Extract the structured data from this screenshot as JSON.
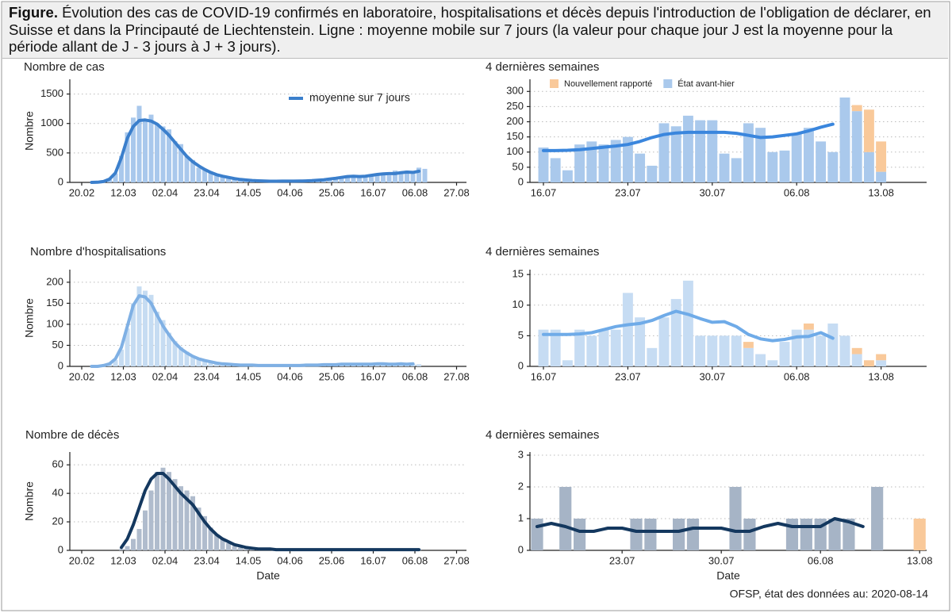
{
  "figure_caption": {
    "label": "Figure.",
    "text": "Évolution des cas de COVID-19 confirmés en laboratoire, hospitalisations et décès depuis l'introduction de l'obligation de déclarer, en Suisse et dans la Principauté de Liechtenstein. Ligne : moyenne mobile sur 7 jours (la valeur pour chaque jour J est la moyenne pour la période allant de J - 3 jours à J + 3 jours)."
  },
  "footer": "OFSP, état des données au: 2020-08-14",
  "chart_data": [
    {
      "type": "bar_line",
      "title": "Nombre de cas",
      "ylabel": "Nombre",
      "grid": true,
      "x": [
        "25.02",
        "28.02",
        "02.03",
        "05.03",
        "08.03",
        "11.03",
        "14.03",
        "17.03",
        "20.03",
        "23.03",
        "26.03",
        "29.03",
        "01.04",
        "04.04",
        "07.04",
        "10.04",
        "13.04",
        "16.04",
        "19.04",
        "22.04",
        "25.04",
        "28.04",
        "01.05",
        "04.05",
        "07.05",
        "10.05",
        "13.05",
        "16.05",
        "19.05",
        "22.05",
        "25.05",
        "28.05",
        "31.05",
        "03.06",
        "06.06",
        "09.06",
        "12.06",
        "15.06",
        "18.06",
        "21.06",
        "24.06",
        "27.06",
        "30.06",
        "03.07",
        "06.07",
        "09.07",
        "12.07",
        "15.07",
        "18.07",
        "21.07",
        "24.07",
        "27.07",
        "30.07",
        "02.08",
        "05.08",
        "08.08",
        "11.08"
      ],
      "xlim": [
        "14.02",
        "01.09"
      ],
      "xticks": [
        "20.02",
        "12.03",
        "02.04",
        "23.04",
        "14.05",
        "04.06",
        "25.06",
        "16.07",
        "06.08",
        "27.08"
      ],
      "ylim": [
        0,
        1750
      ],
      "yticks": [
        0,
        500,
        1000,
        1500
      ],
      "series": [
        {
          "kind": "bar",
          "color": "#a9c8ec",
          "values": [
            0,
            5,
            20,
            60,
            150,
            450,
            850,
            1100,
            1300,
            1050,
            1150,
            1000,
            950,
            900,
            700,
            650,
            450,
            380,
            250,
            220,
            180,
            120,
            100,
            90,
            60,
            50,
            40,
            30,
            25,
            20,
            15,
            20,
            25,
            20,
            25,
            20,
            25,
            30,
            35,
            60,
            50,
            90,
            80,
            120,
            100,
            90,
            110,
            130,
            140,
            150,
            120,
            200,
            180,
            200,
            170,
            250,
            230
          ]
        },
        {
          "kind": "line",
          "name": "moyenne sur 7 jours",
          "color": "#3b7fcc",
          "values": [
            0,
            3,
            15,
            55,
            160,
            420,
            750,
            950,
            1050,
            1060,
            1040,
            990,
            900,
            800,
            680,
            560,
            440,
            350,
            280,
            220,
            170,
            130,
            105,
            85,
            65,
            50,
            40,
            32,
            27,
            23,
            20,
            20,
            21,
            22,
            22,
            23,
            26,
            30,
            36,
            45,
            58,
            70,
            85,
            100,
            105,
            100,
            105,
            120,
            135,
            145,
            150,
            150,
            165,
            175,
            170,
            190,
            null
          ]
        }
      ]
    },
    {
      "type": "stacked_bar_line",
      "title": "4 dernières semaines",
      "grid": true,
      "categories": [
        "16.07",
        null,
        null,
        null,
        null,
        null,
        null,
        "23.07",
        null,
        null,
        null,
        null,
        null,
        null,
        "30.07",
        null,
        null,
        null,
        null,
        null,
        null,
        "06.08",
        null,
        null,
        null,
        null,
        null,
        null,
        "13.08"
      ],
      "ylim": [
        0,
        340
      ],
      "yticks": [
        0,
        50,
        100,
        150,
        200,
        250,
        300
      ],
      "series": [
        {
          "kind": "bar",
          "name": "État avant-hier",
          "color": "#aac9ec",
          "values": [
            115,
            80,
            40,
            125,
            135,
            125,
            140,
            150,
            95,
            55,
            195,
            185,
            220,
            205,
            205,
            95,
            80,
            195,
            180,
            100,
            105,
            160,
            180,
            135,
            100,
            280,
            235,
            100,
            35
          ]
        },
        {
          "kind": "bar",
          "name": "Nouvellement rapporté",
          "color": "#f9c99a",
          "values": [
            0,
            0,
            0,
            0,
            0,
            0,
            0,
            0,
            0,
            0,
            0,
            0,
            0,
            0,
            0,
            0,
            0,
            0,
            0,
            0,
            0,
            0,
            0,
            0,
            0,
            0,
            20,
            140,
            100
          ]
        },
        {
          "kind": "line",
          "color": "#3a86dd",
          "values": [
            105,
            105,
            106,
            108,
            112,
            116,
            120,
            125,
            135,
            148,
            158,
            163,
            165,
            165,
            165,
            165,
            162,
            155,
            148,
            150,
            155,
            160,
            170,
            182,
            192,
            null,
            null,
            null,
            null
          ]
        }
      ]
    },
    {
      "type": "bar_line",
      "title": "Nombre d'hospitalisations",
      "ylabel": "Nombre",
      "grid": true,
      "x": [
        "25.02",
        "28.02",
        "02.03",
        "05.03",
        "08.03",
        "11.03",
        "14.03",
        "17.03",
        "20.03",
        "23.03",
        "26.03",
        "29.03",
        "01.04",
        "04.04",
        "07.04",
        "10.04",
        "13.04",
        "16.04",
        "19.04",
        "22.04",
        "25.04",
        "28.04",
        "01.05",
        "04.05",
        "07.05",
        "10.05",
        "13.05",
        "16.05",
        "19.05",
        "22.05",
        "25.05",
        "28.05",
        "31.05",
        "03.06",
        "06.06",
        "09.06",
        "12.06",
        "15.06",
        "18.06",
        "21.06",
        "24.06",
        "27.06",
        "30.06",
        "03.07",
        "06.07",
        "09.07",
        "12.07",
        "15.07",
        "18.07",
        "21.07",
        "24.07",
        "27.07",
        "30.07",
        "02.08",
        "05.08",
        "08.08",
        "11.08"
      ],
      "xlim": [
        "14.02",
        "01.09"
      ],
      "xticks": [
        "20.02",
        "12.03",
        "02.04",
        "23.04",
        "14.05",
        "04.06",
        "25.06",
        "16.07",
        "06.08",
        "27.08"
      ],
      "ylim": [
        0,
        230
      ],
      "yticks": [
        0,
        50,
        100,
        150,
        200
      ],
      "series": [
        {
          "kind": "bar",
          "color": "#c6dcf2",
          "values": [
            0,
            0,
            2,
            5,
            15,
            40,
            90,
            150,
            190,
            180,
            170,
            130,
            110,
            80,
            60,
            45,
            35,
            25,
            20,
            15,
            12,
            9,
            7,
            5,
            4,
            3,
            3,
            3,
            2,
            2,
            2,
            2,
            2,
            2,
            2,
            2,
            3,
            3,
            3,
            4,
            4,
            5,
            5,
            5,
            4,
            5,
            5,
            6,
            5,
            5,
            6,
            5,
            6,
            5,
            6,
            5,
            null
          ]
        },
        {
          "kind": "line",
          "color": "#7fb0e4",
          "values": [
            0,
            0,
            2,
            6,
            18,
            45,
            95,
            145,
            168,
            165,
            150,
            122,
            96,
            75,
            56,
            42,
            32,
            24,
            18,
            14,
            11,
            8,
            6,
            5,
            4,
            3,
            3,
            3,
            2,
            2,
            2,
            2,
            2,
            2,
            2,
            2,
            3,
            3,
            3,
            4,
            4,
            4,
            5,
            5,
            5,
            5,
            5,
            5,
            6,
            6,
            5,
            5,
            6,
            5,
            6,
            null,
            null
          ]
        }
      ]
    },
    {
      "type": "stacked_bar_line",
      "title": "4 dernières semaines",
      "grid": true,
      "categories": [
        "16.07",
        null,
        null,
        null,
        null,
        null,
        null,
        "23.07",
        null,
        null,
        null,
        null,
        null,
        null,
        "30.07",
        null,
        null,
        null,
        null,
        null,
        null,
        "06.08",
        null,
        null,
        null,
        null,
        null,
        null,
        "13.08"
      ],
      "ylim": [
        0,
        15.8
      ],
      "yticks": [
        0,
        5,
        10,
        15
      ],
      "series": [
        {
          "kind": "bar",
          "color": "#c6dcf3",
          "values": [
            6,
            6,
            1,
            6,
            5,
            6,
            6,
            12,
            8,
            3,
            8,
            11,
            14,
            5,
            5,
            5,
            5,
            3,
            2,
            1,
            4,
            6,
            6,
            5,
            7,
            5,
            2,
            0,
            1
          ]
        },
        {
          "kind": "bar",
          "color": "#f9c99a",
          "values": [
            0,
            0,
            0,
            0,
            0,
            0,
            0,
            0,
            0,
            0,
            0,
            0,
            0,
            0,
            0,
            0,
            0,
            1,
            0,
            0,
            0,
            0,
            1,
            0,
            0,
            0,
            1,
            1,
            1
          ]
        },
        {
          "kind": "line",
          "color": "#6fabe8",
          "values": [
            5.2,
            5.2,
            5.2,
            5.3,
            5.5,
            6,
            6.5,
            6.8,
            7,
            7.5,
            8.3,
            9,
            8.5,
            7.8,
            7.2,
            7.3,
            6.5,
            5.2,
            4.5,
            4.2,
            4.4,
            4.8,
            4.9,
            5.5,
            4.6,
            null,
            null,
            null,
            null
          ]
        }
      ]
    },
    {
      "type": "bar_line",
      "title": "Nombre de décès",
      "ylabel": "Nombre",
      "xlabel": "Date",
      "grid": true,
      "x": [
        "25.02",
        "28.02",
        "02.03",
        "05.03",
        "08.03",
        "11.03",
        "14.03",
        "17.03",
        "20.03",
        "23.03",
        "26.03",
        "29.03",
        "01.04",
        "04.04",
        "07.04",
        "10.04",
        "13.04",
        "16.04",
        "19.04",
        "22.04",
        "25.04",
        "28.04",
        "01.05",
        "04.05",
        "07.05",
        "10.05",
        "13.05",
        "16.05",
        "19.05",
        "22.05",
        "25.05",
        "28.05",
        "31.05",
        "03.06",
        "06.06",
        "09.06",
        "12.06",
        "15.06",
        "18.06",
        "21.06",
        "24.06",
        "27.06",
        "30.06",
        "03.07",
        "06.07",
        "09.07",
        "12.07",
        "15.07",
        "18.07",
        "21.07",
        "24.07",
        "27.07",
        "30.07",
        "02.08",
        "05.08",
        "08.08",
        "11.08"
      ],
      "xlim": [
        "14.02",
        "01.09"
      ],
      "xticks": [
        "20.02",
        "12.03",
        "02.04",
        "23.04",
        "14.05",
        "04.06",
        "25.06",
        "16.07",
        "06.08",
        "27.08"
      ],
      "ylim": [
        0,
        69
      ],
      "yticks": [
        0,
        20,
        40,
        60
      ],
      "series": [
        {
          "kind": "bar",
          "color": "#b0bccd",
          "values": [
            0,
            0,
            0,
            0,
            0,
            1,
            3,
            8,
            15,
            28,
            42,
            55,
            58,
            55,
            50,
            45,
            42,
            38,
            30,
            24,
            16,
            11,
            8,
            5,
            3,
            2,
            1,
            1,
            1,
            1,
            1,
            0,
            0,
            0,
            0,
            0,
            0,
            0,
            0,
            0,
            0,
            0,
            0,
            0,
            0,
            0,
            0,
            0,
            0,
            0,
            0,
            0,
            0,
            0,
            1,
            1,
            null
          ]
        },
        {
          "kind": "line",
          "color": "#14385f",
          "values": [
            null,
            null,
            null,
            null,
            null,
            2,
            8,
            18,
            30,
            42,
            50,
            54,
            54,
            50,
            45,
            40,
            36,
            32,
            26,
            20,
            15,
            11,
            8,
            6,
            4,
            3,
            2,
            1.5,
            1,
            1,
            1,
            0.5,
            0.5,
            0.5,
            0.5,
            0.5,
            0.5,
            0.5,
            0.5,
            0.5,
            0.5,
            0.5,
            0.5,
            0.5,
            0.5,
            0.5,
            0.5,
            0.5,
            0.5,
            0.5,
            0.5,
            0.5,
            0.5,
            0.5,
            0.5,
            0.5,
            null
          ]
        }
      ]
    },
    {
      "type": "stacked_bar_line",
      "title": "4 dernières semaines",
      "xlabel": "Date",
      "grid": true,
      "categories": [
        null,
        null,
        null,
        null,
        null,
        null,
        "23.07",
        null,
        null,
        null,
        null,
        null,
        null,
        "30.07",
        null,
        null,
        null,
        null,
        null,
        null,
        "06.08",
        null,
        null,
        null,
        null,
        null,
        null,
        "13.08"
      ],
      "ylim": [
        0,
        3.1
      ],
      "yticks": [
        0,
        1,
        2,
        3
      ],
      "series": [
        {
          "kind": "bar",
          "color": "#a6b4c6",
          "values": [
            1,
            0,
            2,
            1,
            0,
            0,
            0,
            1,
            1,
            0,
            1,
            1,
            0,
            0,
            2,
            1,
            0,
            0,
            1,
            1,
            1,
            1,
            1,
            0,
            2,
            0,
            0,
            0
          ]
        },
        {
          "kind": "bar",
          "color": "#f9c99a",
          "values": [
            0,
            0,
            0,
            0,
            0,
            0,
            0,
            0,
            0,
            0,
            0,
            0,
            0,
            0,
            0,
            0,
            0,
            0,
            0,
            0,
            0,
            0,
            0,
            0,
            0,
            0,
            0,
            1
          ]
        },
        {
          "kind": "line",
          "color": "#14385f",
          "values": [
            0.75,
            0.85,
            0.75,
            0.6,
            0.6,
            0.7,
            0.7,
            0.6,
            0.6,
            0.6,
            0.6,
            0.7,
            0.7,
            0.7,
            0.6,
            0.6,
            0.75,
            0.85,
            0.75,
            0.75,
            0.75,
            1.0,
            0.9,
            0.75,
            null,
            null,
            null,
            null
          ]
        }
      ]
    }
  ]
}
